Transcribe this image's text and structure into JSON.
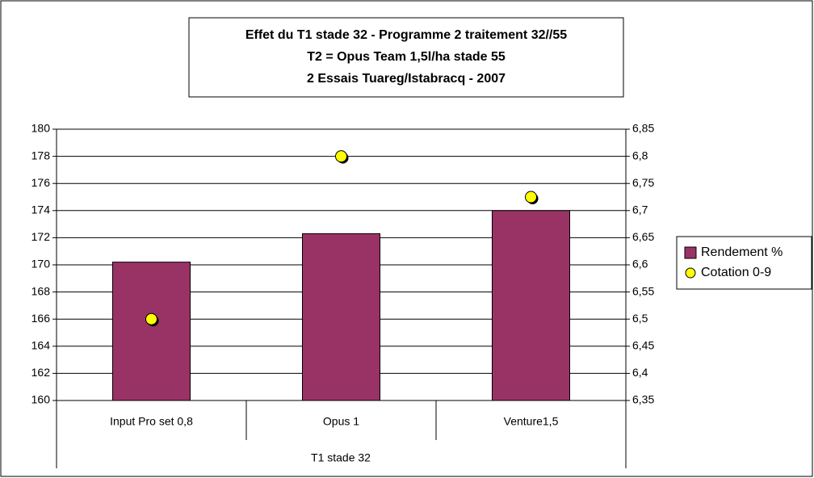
{
  "chart_data": {
    "type": "bar",
    "title": [
      "Effet du T1 stade 32 - Programme 2 traitement 32//55",
      "T2 = Opus Team 1,5l/ha stade 55",
      "2 Essais Tuareg/Istabracq - 2007"
    ],
    "x_label": "T1 stade 32",
    "categories": [
      "Input Pro set 0,8",
      "Opus 1",
      "Venture1,5"
    ],
    "series": [
      {
        "name": "Rendement %",
        "color": "#993366",
        "values": [
          170.2,
          172.3,
          174
        ]
      },
      {
        "name": "Cotation 0-9",
        "color": "#ffff00",
        "axis": "y2",
        "values": [
          6.5,
          6.8,
          6.725
        ]
      }
    ],
    "ylim": [
      160,
      180
    ],
    "yticks": [
      160,
      162,
      164,
      166,
      168,
      170,
      172,
      174,
      176,
      178,
      180
    ],
    "y2lim": [
      6.35,
      6.85
    ],
    "y2ticks": [
      {
        "value": 6.35,
        "label": "6,35"
      },
      {
        "value": 6.4,
        "label": "6,4"
      },
      {
        "value": 6.45,
        "label": "6,45"
      },
      {
        "value": 6.5,
        "label": "6,5"
      },
      {
        "value": 6.55,
        "label": "6,55"
      },
      {
        "value": 6.6,
        "label": "6,6"
      },
      {
        "value": 6.65,
        "label": "6,65"
      },
      {
        "value": 6.7,
        "label": "6,7"
      },
      {
        "value": 6.75,
        "label": "6,75"
      },
      {
        "value": 6.8,
        "label": "6,8"
      },
      {
        "value": 6.85,
        "label": "6,85"
      }
    ],
    "grid": true,
    "legend": "right"
  }
}
